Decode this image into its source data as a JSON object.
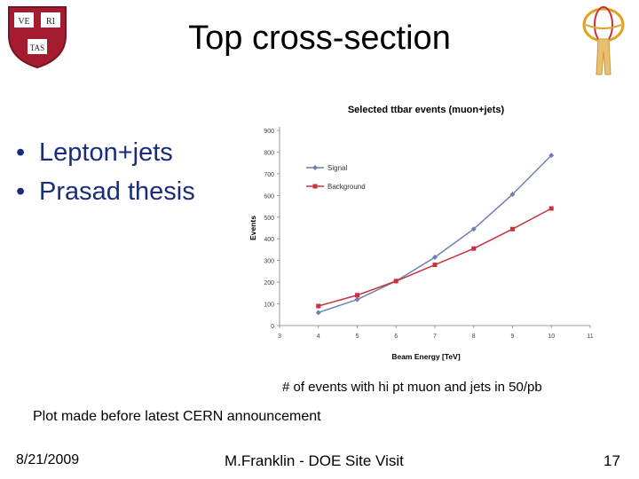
{
  "slide": {
    "title": "Top cross-section",
    "bullets": [
      "Lepton+jets",
      "Prasad thesis"
    ],
    "caption": "# of events with hi pt muon and jets in 50/pb",
    "note": "Plot made before latest CERN announcement",
    "footer": {
      "date": "8/21/2009",
      "presenter": "M.Franklin - DOE Site Visit",
      "page": "17"
    }
  },
  "logos": {
    "left": {
      "icon": "harvard-shield-icon",
      "lettering": [
        "VE",
        "RI",
        "TAS"
      ],
      "color": "#a51c30"
    },
    "right": {
      "icon": "atlas-experiment-logo-icon",
      "color": "#e0a020"
    }
  },
  "chart_data": {
    "type": "line",
    "title": "Selected ttbar events (muon+jets)",
    "xlabel": "Beam Energy [TeV]",
    "ylabel": "Events",
    "xlim": [
      3,
      11
    ],
    "ylim": [
      0,
      900
    ],
    "xticks": [
      3,
      4,
      5,
      6,
      7,
      8,
      9,
      10,
      11
    ],
    "yticks": [
      0,
      100,
      200,
      300,
      400,
      500,
      600,
      700,
      800,
      900
    ],
    "grid": false,
    "legend_position": "top-left",
    "x": [
      4,
      5,
      6,
      7,
      8,
      9,
      10
    ],
    "series": [
      {
        "name": "Signal",
        "color": "#6f7fb0",
        "marker": "diamond",
        "values": [
          60,
          120,
          205,
          315,
          445,
          605,
          785
        ]
      },
      {
        "name": "Background",
        "color": "#c8323c",
        "marker": "square",
        "values": [
          90,
          140,
          205,
          280,
          355,
          445,
          540
        ]
      }
    ]
  }
}
